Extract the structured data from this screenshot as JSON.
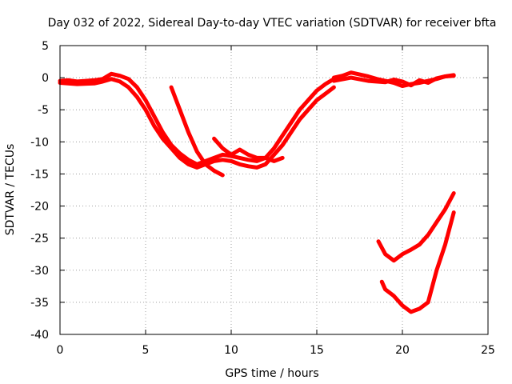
{
  "chart_data": {
    "type": "line",
    "title": "Day 032 of 2022, Sidereal Day-to-day VTEC variation (SDTVAR) for receiver bfta",
    "xlabel": "GPS time / hours",
    "ylabel": "SDTVAR / TECUs",
    "xlim": [
      0,
      25
    ],
    "ylim": [
      -40,
      5
    ],
    "xticks": [
      0,
      5,
      10,
      15,
      20,
      25
    ],
    "yticks": [
      5,
      0,
      -5,
      -10,
      -15,
      -20,
      -25,
      -30,
      -35,
      -40
    ],
    "grid": true,
    "series_color": "#ff0000",
    "series": [
      {
        "name": "track-1",
        "x": [
          0,
          0.5,
          1,
          1.5,
          2,
          2.5,
          3,
          3.5,
          4,
          4.5,
          5,
          5.5,
          6,
          6.5,
          7,
          7.5,
          8,
          8.5,
          9,
          9.5,
          10,
          10.5,
          11,
          11.5,
          12,
          12.5,
          13,
          13.5,
          14,
          14.5,
          15,
          15.5,
          16
        ],
        "y": [
          -0.5,
          -0.4,
          -0.6,
          -0.5,
          -0.4,
          -0.2,
          0.6,
          0.3,
          -0.2,
          -1.5,
          -3.5,
          -6,
          -8.5,
          -10.5,
          -11.8,
          -12.8,
          -13.5,
          -13,
          -12.5,
          -12,
          -12.2,
          -12.5,
          -12.8,
          -13,
          -12.5,
          -11,
          -9,
          -7,
          -5,
          -3.5,
          -2,
          -1,
          -0.2
        ]
      },
      {
        "name": "track-2",
        "x": [
          0,
          1,
          2,
          2.5,
          3,
          3.5,
          4,
          4.5,
          5,
          5.5,
          6,
          6.5,
          7,
          7.5,
          8,
          8.5,
          9,
          9.5,
          10,
          10.5,
          11,
          11.5,
          12,
          12.5,
          13,
          13.5,
          14,
          14.5,
          15,
          15.5,
          16
        ],
        "y": [
          -0.8,
          -1,
          -0.9,
          -0.6,
          -0.2,
          -0.6,
          -1.5,
          -3,
          -5,
          -7.5,
          -9.5,
          -11,
          -12.5,
          -13.5,
          -14,
          -13.5,
          -13,
          -12.8,
          -13,
          -13.5,
          -13.8,
          -14,
          -13.5,
          -12,
          -10.5,
          -8.5,
          -6.5,
          -5,
          -3.5,
          -2.5,
          -1.5
        ]
      },
      {
        "name": "track-3",
        "x": [
          6.5,
          7,
          7.5,
          8,
          8.5,
          9,
          9.5
        ],
        "y": [
          -1.5,
          -5,
          -8.5,
          -11.5,
          -13.5,
          -14.5,
          -15.2
        ]
      },
      {
        "name": "track-4",
        "x": [
          16,
          16.5,
          17,
          17.5,
          18,
          18.5,
          19,
          19.5,
          20,
          20.5,
          21,
          21.5,
          22,
          22.5,
          23
        ],
        "y": [
          0,
          0.3,
          0.8,
          0.5,
          0.2,
          -0.2,
          -0.5,
          -0.8,
          -1.3,
          -1,
          -0.8,
          -0.5,
          -0.2,
          0.2,
          0.3
        ]
      },
      {
        "name": "track-5",
        "x": [
          16,
          17,
          18,
          19,
          19.5,
          20,
          20.5,
          21,
          21.5,
          22,
          22.5,
          23
        ],
        "y": [
          -0.5,
          0,
          -0.5,
          -0.7,
          -0.3,
          -0.6,
          -1.2,
          -0.4,
          -0.8,
          -0.1,
          0.2,
          0.4
        ]
      },
      {
        "name": "track-6",
        "x": [
          9,
          9.5,
          10,
          10.5,
          11,
          11.5,
          12,
          12.5,
          13
        ],
        "y": [
          -9.5,
          -11,
          -12,
          -11.2,
          -12,
          -12.5,
          -12.5,
          -13,
          -12.5
        ]
      },
      {
        "name": "track-7",
        "x": [
          18.6,
          19,
          19.5,
          20,
          20.5,
          21,
          21.5,
          22,
          22.5,
          23
        ],
        "y": [
          -25.5,
          -27.5,
          -28.5,
          -27.5,
          -26.8,
          -26,
          -24.5,
          -22.5,
          -20.5,
          -18
        ]
      },
      {
        "name": "track-8",
        "x": [
          18.8,
          19,
          19.5,
          20,
          20.5,
          21,
          21.5,
          22,
          22.5,
          23
        ],
        "y": [
          -31.8,
          -33,
          -34,
          -35.5,
          -36.5,
          -36,
          -35,
          -30,
          -26,
          -21
        ]
      }
    ]
  }
}
